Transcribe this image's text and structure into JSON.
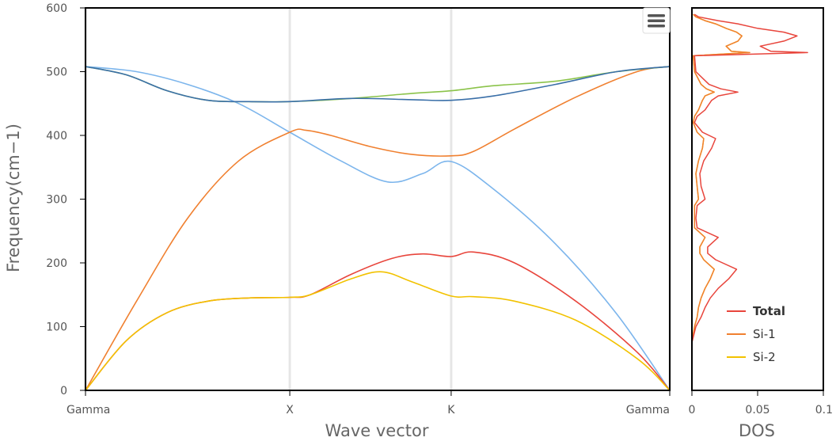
{
  "chart_data": [
    {
      "type": "line",
      "name": "band-structure",
      "xlabel": "Wave vector",
      "ylabel": "Frequency(cm−1)",
      "ylim": [
        0,
        600
      ],
      "yticks": [
        0,
        100,
        200,
        300,
        400,
        500,
        600
      ],
      "x_points": [
        {
          "label": "Gamma",
          "x": 0
        },
        {
          "label": "X",
          "x": 1
        },
        {
          "label": "K",
          "x": 1.79
        },
        {
          "label": "Gamma",
          "x": 2.86
        }
      ],
      "xlim": [
        0,
        2.86
      ],
      "grid": "vertical lines at high-symmetry points",
      "series": [
        {
          "color": "#7cb5ec",
          "x": [
            0,
            0.25,
            0.5,
            0.75,
            1.0,
            1.25,
            1.48,
            1.65,
            1.79,
            2.0,
            2.3,
            2.6,
            2.86
          ],
          "y": [
            508,
            500,
            480,
            450,
            405,
            360,
            327,
            340,
            359,
            315,
            230,
            120,
            0
          ]
        },
        {
          "color": "#f08030",
          "x": [
            0,
            0.25,
            0.5,
            0.75,
            1.0,
            1.08,
            1.2,
            1.4,
            1.6,
            1.79,
            1.9,
            2.1,
            2.4,
            2.7,
            2.86
          ],
          "y": [
            0,
            140,
            270,
            360,
            405,
            408,
            400,
            382,
            370,
            368,
            375,
            410,
            460,
            500,
            508
          ]
        },
        {
          "color": "#8bc34a",
          "x": [
            0,
            0.2,
            0.4,
            0.6,
            0.8,
            1.0,
            1.3,
            1.6,
            1.79,
            2.0,
            2.3,
            2.6,
            2.86
          ],
          "y": [
            508,
            495,
            470,
            455,
            453,
            453,
            458,
            466,
            470,
            478,
            485,
            500,
            508
          ]
        },
        {
          "color": "#3a6fa8",
          "x": [
            0,
            0.2,
            0.4,
            0.6,
            0.8,
            1.0,
            1.3,
            1.6,
            1.79,
            2.0,
            2.3,
            2.6,
            2.86
          ],
          "y": [
            508,
            495,
            470,
            455,
            453,
            453,
            458,
            456,
            455,
            462,
            480,
            500,
            508
          ]
        },
        {
          "color": "#e8453c",
          "x": [
            0,
            0.2,
            0.4,
            0.6,
            0.8,
            1.0,
            1.1,
            1.3,
            1.5,
            1.65,
            1.79,
            1.9,
            2.1,
            2.4,
            2.7,
            2.86
          ],
          "y": [
            0,
            78,
            122,
            140,
            145,
            146,
            150,
            182,
            207,
            214,
            210,
            217,
            200,
            140,
            60,
            0
          ]
        },
        {
          "color": "#f2c200",
          "x": [
            0,
            0.2,
            0.4,
            0.6,
            0.8,
            1.0,
            1.1,
            1.3,
            1.45,
            1.6,
            1.79,
            1.9,
            2.1,
            2.4,
            2.7,
            2.86
          ],
          "y": [
            0,
            78,
            122,
            140,
            145,
            146,
            150,
            175,
            186,
            170,
            148,
            147,
            140,
            110,
            50,
            0
          ]
        }
      ]
    },
    {
      "type": "line",
      "name": "density-of-states",
      "xlabel": "DOS",
      "xlim": [
        0,
        0.1
      ],
      "xticks": [
        "0",
        "0.05",
        "0.1"
      ],
      "ylim": [
        0,
        600
      ],
      "legend_position": "bottom-right",
      "series": [
        {
          "name": "Total",
          "color": "#e8453c",
          "freq": [
            75,
            100,
            115,
            130,
            145,
            160,
            175,
            190,
            205,
            215,
            225,
            240,
            255,
            270,
            290,
            300,
            320,
            340,
            360,
            380,
            395,
            405,
            420,
            430,
            440,
            455,
            462,
            468,
            473,
            480,
            500,
            525,
            530,
            532,
            540,
            548,
            556,
            562,
            568,
            575,
            580,
            586,
            590
          ],
          "dos": [
            0.0,
            0.003,
            0.007,
            0.01,
            0.014,
            0.02,
            0.028,
            0.034,
            0.018,
            0.012,
            0.012,
            0.02,
            0.004,
            0.003,
            0.004,
            0.01,
            0.007,
            0.006,
            0.009,
            0.015,
            0.018,
            0.008,
            0.002,
            0.004,
            0.01,
            0.015,
            0.02,
            0.035,
            0.022,
            0.013,
            0.003,
            0.002,
            0.088,
            0.06,
            0.052,
            0.07,
            0.08,
            0.07,
            0.05,
            0.035,
            0.02,
            0.005,
            0.002
          ]
        },
        {
          "name": "Si-1",
          "color": "#f08030",
          "freq": [
            75,
            100,
            115,
            130,
            145,
            160,
            175,
            190,
            205,
            215,
            225,
            240,
            255,
            270,
            290,
            300,
            320,
            340,
            360,
            380,
            395,
            405,
            420,
            430,
            440,
            455,
            462,
            468,
            473,
            480,
            500,
            525,
            530,
            532,
            540,
            548,
            556,
            562,
            568,
            575,
            580,
            586,
            590
          ],
          "dos": [
            0.0,
            0.002,
            0.004,
            0.005,
            0.007,
            0.01,
            0.014,
            0.017,
            0.009,
            0.006,
            0.006,
            0.01,
            0.002,
            0.002,
            0.002,
            0.005,
            0.004,
            0.003,
            0.005,
            0.008,
            0.009,
            0.004,
            0.001,
            0.002,
            0.005,
            0.008,
            0.01,
            0.017,
            0.011,
            0.007,
            0.002,
            0.001,
            0.044,
            0.03,
            0.026,
            0.035,
            0.038,
            0.034,
            0.026,
            0.018,
            0.01,
            0.003,
            0.001
          ]
        },
        {
          "name": "Si-2",
          "color": "#f2c200",
          "freq": [
            75,
            100,
            115,
            130,
            145,
            160,
            175,
            190,
            205,
            215,
            225,
            240,
            255,
            270,
            290,
            300,
            320,
            340,
            360,
            380,
            395,
            405,
            420,
            430,
            440,
            455,
            462,
            468,
            473,
            480,
            500,
            525,
            530,
            532,
            540,
            548,
            556,
            562,
            568,
            575,
            580,
            586,
            590
          ],
          "dos": [
            0.0,
            0.002,
            0.004,
            0.005,
            0.007,
            0.01,
            0.014,
            0.017,
            0.009,
            0.006,
            0.006,
            0.01,
            0.002,
            0.002,
            0.002,
            0.005,
            0.004,
            0.003,
            0.005,
            0.008,
            0.009,
            0.004,
            0.001,
            0.002,
            0.005,
            0.008,
            0.01,
            0.017,
            0.011,
            0.007,
            0.002,
            0.001,
            0.044,
            0.03,
            0.026,
            0.035,
            0.038,
            0.034,
            0.026,
            0.018,
            0.01,
            0.003,
            0.001
          ]
        }
      ]
    }
  ],
  "toolbar": {
    "menu_icon": "hamburger-menu-icon"
  }
}
